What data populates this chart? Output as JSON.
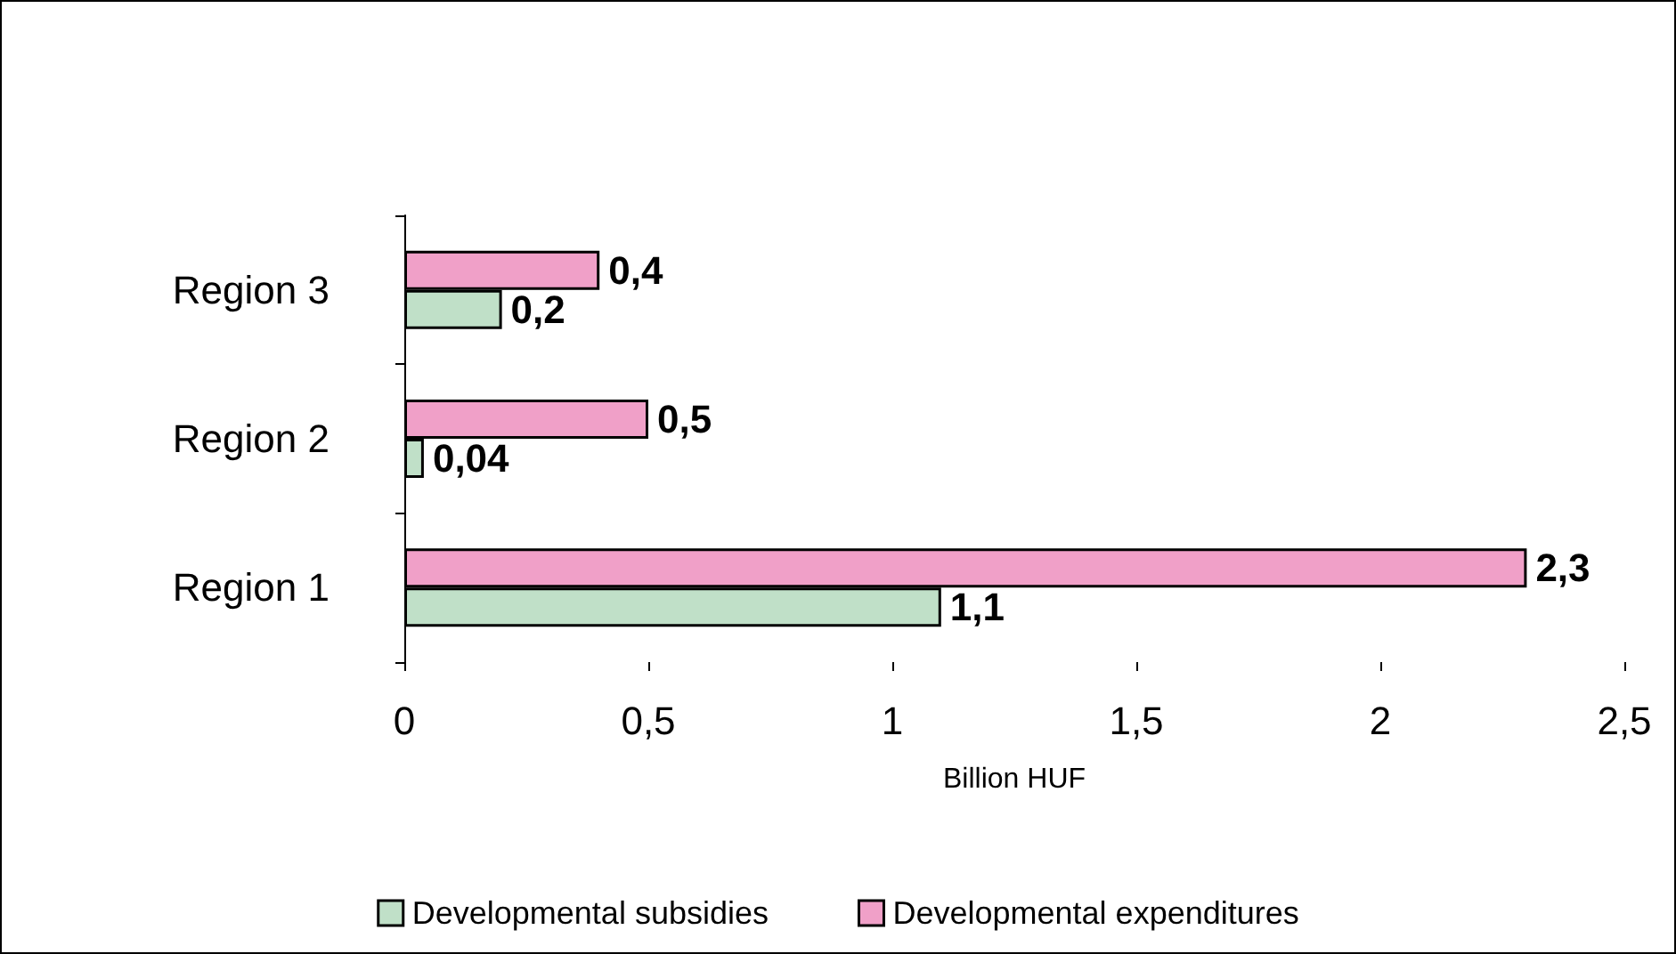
{
  "chart_data": {
    "type": "bar",
    "orientation": "horizontal",
    "xlabel": "Billion HUF",
    "categories": [
      "Region 3",
      "Region 2",
      "Region 1"
    ],
    "series": [
      {
        "name": "Developmental subsidies",
        "color": "#c0e0c8",
        "values": [
          0.2,
          0.04,
          1.1
        ],
        "value_labels": [
          "0,2",
          "0,04",
          "1,1"
        ]
      },
      {
        "name": "Developmental expenditures",
        "color": "#f0a0c8",
        "values": [
          0.4,
          0.5,
          2.3
        ],
        "value_labels": [
          "0,4",
          "0,5",
          "2,3"
        ]
      }
    ],
    "xlim": [
      0,
      2.5
    ],
    "xticks": [
      0,
      {
        "value": 0.5,
        "label": "0,5"
      },
      1,
      {
        "value": 1.5,
        "label": "1,5"
      },
      2,
      {
        "value": 2.5,
        "label": "2,5"
      }
    ],
    "grid": false,
    "legend": "bottom"
  }
}
